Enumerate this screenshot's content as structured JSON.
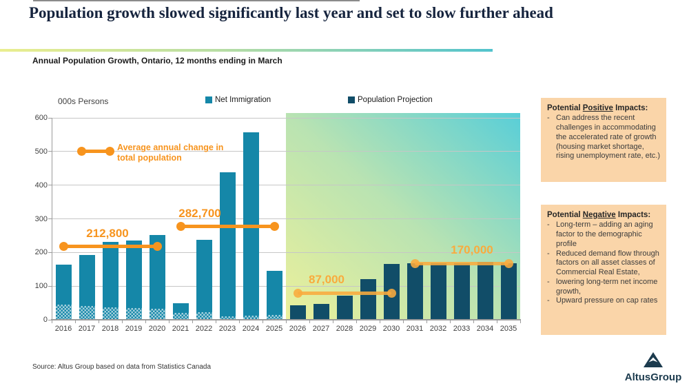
{
  "page": {
    "title": "Population growth slowed significantly last year and set to slow further ahead",
    "subtitle": "Annual Population Growth, Ontario, 12 months ending in March",
    "unit_label": "000s Persons",
    "source": "Source:  Altus Group based on data from Statistics Canada",
    "logo_text": "AltusGroup"
  },
  "legend": [
    {
      "label": "Net Immigration",
      "color": "#1587a8"
    },
    {
      "label": "Population Projection",
      "color": "#114d68"
    }
  ],
  "colors": {
    "historical_bar": "#1587a8",
    "projection_bar": "#114d68",
    "annotation_orange": "#f7941e",
    "annotation_amber": "#f9ab3d",
    "impact_box_bg": "#fad5a9",
    "title_navy": "#16243e"
  },
  "chart_data": {
    "type": "bar",
    "title": "Annual Population Growth, Ontario, 12 months ending in March",
    "ylabel": "000s Persons",
    "ylim": [
      0,
      600
    ],
    "y_ticks": [
      0,
      100,
      200,
      300,
      400,
      500,
      600
    ],
    "grid": true,
    "legend_position": "top",
    "categories": [
      2016,
      2017,
      2018,
      2019,
      2020,
      2021,
      2022,
      2023,
      2024,
      2025,
      2026,
      2027,
      2028,
      2029,
      2030,
      2031,
      2032,
      2033,
      2034,
      2035
    ],
    "projection_start": 2026,
    "series": [
      {
        "name": "Net Immigration",
        "color": "#1587a8",
        "values": [
          162,
          190,
          230,
          234,
          250,
          47,
          235,
          437,
          556,
          143,
          null,
          null,
          null,
          null,
          null,
          null,
          null,
          null,
          null,
          null
        ]
      },
      {
        "name": "Net Immigration hatched base segment",
        "pattern": "checker",
        "color": "#1587a8",
        "values": [
          44,
          38,
          35,
          33,
          31,
          18,
          20,
          9,
          10,
          12,
          null,
          null,
          null,
          null,
          null,
          null,
          null,
          null,
          null,
          null
        ]
      },
      {
        "name": "Population Projection",
        "color": "#114d68",
        "values": [
          null,
          null,
          null,
          null,
          null,
          null,
          null,
          null,
          null,
          null,
          40,
          45,
          70,
          118,
          163,
          165,
          165,
          166,
          170,
          166
        ]
      }
    ],
    "annotations": [
      {
        "role": "key",
        "label": "Average annual change in total population",
        "value": 500
      },
      {
        "role": "avg-line",
        "label": "212,800",
        "value": 218,
        "from": 2016,
        "to": 2020
      },
      {
        "role": "avg-line",
        "label": "282,700",
        "value": 277,
        "from": 2021,
        "to": 2025
      },
      {
        "role": "avg-line",
        "label": "87,000",
        "value": 79,
        "from": 2026,
        "to": 2030
      },
      {
        "role": "avg-line",
        "label": "170,000",
        "value": 167,
        "from": 2031,
        "to": 2035
      }
    ]
  },
  "impacts": {
    "positive": {
      "title_prefix": "Potential ",
      "title_emph": "Positive",
      "title_suffix": " Impacts:",
      "bullets": [
        "Can address the recent challenges in accommodating the accelerated rate of growth (housing market shortage, rising unemployment rate, etc.)"
      ]
    },
    "negative": {
      "title_prefix": "Potential ",
      "title_emph": "Negative",
      "title_suffix": " Impacts:",
      "bullets": [
        "Long-term – adding an aging factor to the demographic profile",
        "Reduced demand flow through factors on all asset classes of Commercial Real Estate,",
        "lowering long-term net income growth,",
        "Upward pressure on cap rates"
      ]
    }
  }
}
